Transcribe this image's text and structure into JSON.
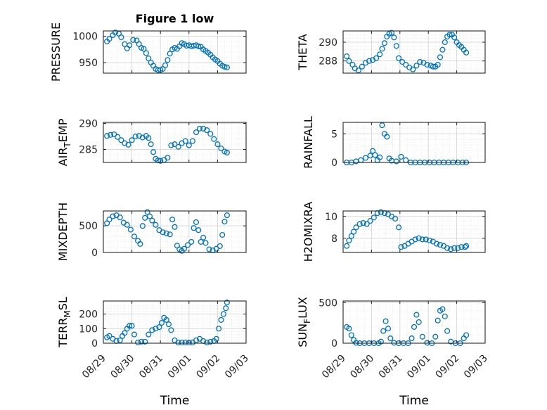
{
  "figure": {
    "title": "Figure 1 low",
    "xlabel": "Time",
    "x_ticks": [
      "08/29",
      "08/30",
      "08/31",
      "09/01",
      "09/02",
      "09/03"
    ],
    "marker_color": "#0072BD",
    "grid_color": "#d9d9d9"
  },
  "chart_data": [
    {
      "type": "scatter",
      "marker": "circle",
      "ylabel": "PRESSURE",
      "title": "Figure 1 low",
      "xlim": [
        "2017-08-29",
        "2017-09-03"
      ],
      "xlabel": "",
      "ylim": [
        930,
        1010
      ],
      "yticks": [
        950,
        1000
      ],
      "ytick_labels": [
        "950",
        "1000"
      ],
      "grid": true,
      "x": [
        "2017-08-29 03:00",
        "2017-08-29 05:00",
        "2017-08-29 08:00",
        "2017-08-29 10:00",
        "2017-08-29 13:00",
        "2017-08-29 15:00",
        "2017-08-29 18:00",
        "2017-08-29 20:00",
        "2017-08-29 22:00",
        "2017-08-30 01:00",
        "2017-08-30 04:00",
        "2017-08-30 06:00",
        "2017-08-30 08:00",
        "2017-08-30 10:00",
        "2017-08-30 12:00",
        "2017-08-30 14:00",
        "2017-08-30 16:00",
        "2017-08-30 18:00",
        "2017-08-30 20:00",
        "2017-08-30 22:00",
        "2017-08-31 00:00",
        "2017-08-31 02:00",
        "2017-08-31 04:00",
        "2017-08-31 06:00",
        "2017-08-31 08:00",
        "2017-08-31 10:00",
        "2017-08-31 12:00",
        "2017-08-31 14:00",
        "2017-08-31 16:00",
        "2017-08-31 18:00",
        "2017-08-31 20:00",
        "2017-08-31 22:00",
        "2017-09-01 00:00",
        "2017-09-01 02:00",
        "2017-09-01 04:00",
        "2017-09-01 06:00",
        "2017-09-01 08:00",
        "2017-09-01 10:00",
        "2017-09-01 12:00",
        "2017-09-01 14:00",
        "2017-09-01 16:00",
        "2017-09-01 18:00",
        "2017-09-01 20:00",
        "2017-09-01 22:00",
        "2017-09-02 00:00",
        "2017-09-02 02:00",
        "2017-09-02 04:00",
        "2017-09-02 06:00",
        "2017-09-02 08:00"
      ],
      "y": [
        990,
        995,
        1002,
        1007,
        1005,
        998,
        985,
        977,
        983,
        993,
        992,
        985,
        978,
        976,
        968,
        958,
        950,
        944,
        938,
        936,
        936,
        938,
        945,
        955,
        967,
        975,
        978,
        976,
        981,
        987,
        985,
        982,
        983,
        981,
        982,
        983,
        981,
        980,
        975,
        972,
        969,
        965,
        960,
        956,
        953,
        948,
        944,
        942,
        941
      ]
    },
    {
      "type": "scatter",
      "marker": "circle",
      "ylabel": "THETA",
      "xlim": [
        "2017-08-29",
        "2017-09-03"
      ],
      "ylim": [
        286.7,
        291.2
      ],
      "yticks": [
        288,
        290
      ],
      "ytick_labels": [
        "288",
        "290"
      ],
      "grid": true,
      "x": [
        "2017-08-29 03:00",
        "2017-08-29 05:00",
        "2017-08-29 08:00",
        "2017-08-29 10:00",
        "2017-08-29 13:00",
        "2017-08-29 16:00",
        "2017-08-29 19:00",
        "2017-08-29 22:00",
        "2017-08-30 01:00",
        "2017-08-30 04:00",
        "2017-08-30 07:00",
        "2017-08-30 09:00",
        "2017-08-30 11:00",
        "2017-08-30 13:00",
        "2017-08-30 15:00",
        "2017-08-30 17:00",
        "2017-08-30 19:00",
        "2017-08-30 21:00",
        "2017-08-30 23:00",
        "2017-08-31 02:00",
        "2017-08-31 05:00",
        "2017-08-31 08:00",
        "2017-08-31 11:00",
        "2017-08-31 14:00",
        "2017-08-31 17:00",
        "2017-08-31 20:00",
        "2017-08-31 23:00",
        "2017-09-01 02:00",
        "2017-09-01 04:00",
        "2017-09-01 06:00",
        "2017-09-01 08:00",
        "2017-09-01 10:00",
        "2017-09-01 12:00",
        "2017-09-01 14:00",
        "2017-09-01 16:00",
        "2017-09-01 18:00",
        "2017-09-01 20:00",
        "2017-09-01 22:00",
        "2017-09-02 00:00",
        "2017-09-02 02:00",
        "2017-09-02 04:00",
        "2017-09-02 06:00",
        "2017-09-02 08:00"
      ],
      "y": [
        288.5,
        288.0,
        287.6,
        287.2,
        287.0,
        287.4,
        287.8,
        288.0,
        288.1,
        288.3,
        288.7,
        289.3,
        289.9,
        290.6,
        290.9,
        291.0,
        290.5,
        289.6,
        288.3,
        287.9,
        287.6,
        287.3,
        287.1,
        287.5,
        287.9,
        287.8,
        287.6,
        287.5,
        287.4,
        287.4,
        287.6,
        288.4,
        289.2,
        290.0,
        290.6,
        290.8,
        290.8,
        290.5,
        290.0,
        289.7,
        289.5,
        289.2,
        288.9
      ]
    },
    {
      "type": "scatter",
      "marker": "circle",
      "ylabel": "AIR_TEMP",
      "xlim": [
        "2017-08-29",
        "2017-09-03"
      ],
      "ylim": [
        282.5,
        290.2
      ],
      "yticks": [
        285,
        290
      ],
      "ytick_labels": [
        "285",
        "290"
      ],
      "grid": true,
      "x": [
        "2017-08-29 03:00",
        "2017-08-29 06:00",
        "2017-08-29 09:00",
        "2017-08-29 12:00",
        "2017-08-29 15:00",
        "2017-08-29 18:00",
        "2017-08-29 21:00",
        "2017-08-30 00:00",
        "2017-08-30 03:00",
        "2017-08-30 06:00",
        "2017-08-30 09:00",
        "2017-08-30 12:00",
        "2017-08-30 14:00",
        "2017-08-30 16:00",
        "2017-08-30 18:00",
        "2017-08-30 20:00",
        "2017-08-30 22:00",
        "2017-08-31 00:00",
        "2017-08-31 03:00",
        "2017-08-31 06:00",
        "2017-08-31 09:00",
        "2017-08-31 12:00",
        "2017-08-31 15:00",
        "2017-08-31 18:00",
        "2017-08-31 21:00",
        "2017-09-01 00:00",
        "2017-09-01 03:00",
        "2017-09-01 06:00",
        "2017-09-01 09:00",
        "2017-09-01 12:00",
        "2017-09-01 15:00",
        "2017-09-01 18:00",
        "2017-09-01 21:00",
        "2017-09-02 00:00",
        "2017-09-02 03:00",
        "2017-09-02 06:00",
        "2017-09-02 08:00"
      ],
      "y": [
        287.6,
        287.8,
        287.9,
        287.4,
        286.8,
        286.2,
        285.9,
        286.8,
        287.5,
        287.6,
        287.3,
        287.6,
        287.2,
        286.0,
        284.5,
        283.2,
        282.9,
        282.8,
        283.0,
        283.4,
        285.8,
        286.0,
        285.5,
        286.2,
        286.6,
        285.8,
        286.6,
        288.3,
        289.0,
        289.0,
        288.7,
        288.0,
        287.0,
        286.0,
        285.2,
        284.6,
        284.4
      ]
    },
    {
      "type": "scatter",
      "marker": "circle",
      "ylabel": "RAINFALL",
      "xlim": [
        "2017-08-29",
        "2017-09-03"
      ],
      "ylim": [
        0,
        7
      ],
      "yticks": [
        0,
        5
      ],
      "ytick_labels": [
        "0",
        "5"
      ],
      "grid": true,
      "x": [
        "2017-08-29 03:00",
        "2017-08-29 07:00",
        "2017-08-29 11:00",
        "2017-08-29 15:00",
        "2017-08-29 19:00",
        "2017-08-29 23:00",
        "2017-08-30 01:00",
        "2017-08-30 03:00",
        "2017-08-30 05:00",
        "2017-08-30 07:00",
        "2017-08-30 09:00",
        "2017-08-30 11:00",
        "2017-08-30 13:00",
        "2017-08-30 15:00",
        "2017-08-30 17:00",
        "2017-08-30 21:00",
        "2017-08-31 01:00",
        "2017-08-31 05:00",
        "2017-08-31 09:00",
        "2017-08-31 13:00",
        "2017-08-31 17:00",
        "2017-08-31 21:00",
        "2017-09-01 01:00",
        "2017-09-01 05:00",
        "2017-09-01 09:00",
        "2017-09-01 13:00",
        "2017-09-01 17:00",
        "2017-09-01 21:00",
        "2017-09-02 01:00",
        "2017-09-02 05:00",
        "2017-09-02 08:00"
      ],
      "y": [
        0,
        0,
        0.2,
        0.4,
        0.8,
        1.2,
        2.0,
        1.3,
        0.4,
        0.9,
        6.5,
        5.0,
        4.5,
        0.7,
        0.3,
        0.2,
        1.0,
        0.4,
        0,
        0,
        0,
        0,
        0,
        0,
        0,
        0,
        0,
        0,
        0,
        0,
        0
      ]
    },
    {
      "type": "scatter",
      "marker": "circle",
      "ylabel": "MIXDEPTH",
      "xlim": [
        "2017-08-29",
        "2017-09-03"
      ],
      "ylim": [
        0,
        780
      ],
      "yticks": [
        0,
        500
      ],
      "ytick_labels": [
        "0",
        "500"
      ],
      "grid": true,
      "x": [
        "2017-08-29 03:00",
        "2017-08-29 05:00",
        "2017-08-29 08:00",
        "2017-08-29 11:00",
        "2017-08-29 14:00",
        "2017-08-29 17:00",
        "2017-08-29 20:00",
        "2017-08-29 23:00",
        "2017-08-30 02:00",
        "2017-08-30 05:00",
        "2017-08-30 07:00",
        "2017-08-30 09:00",
        "2017-08-30 11:00",
        "2017-08-30 13:00",
        "2017-08-30 15:00",
        "2017-08-30 17:00",
        "2017-08-30 20:00",
        "2017-08-30 23:00",
        "2017-08-31 02:00",
        "2017-08-31 05:00",
        "2017-08-31 08:00",
        "2017-08-31 10:00",
        "2017-08-31 12:00",
        "2017-08-31 14:00",
        "2017-08-31 16:00",
        "2017-08-31 18:00",
        "2017-08-31 20:00",
        "2017-08-31 23:00",
        "2017-09-01 02:00",
        "2017-09-01 04:00",
        "2017-09-01 06:00",
        "2017-09-01 08:00",
        "2017-09-01 10:00",
        "2017-09-01 12:00",
        "2017-09-01 14:00",
        "2017-09-01 17:00",
        "2017-09-01 20:00",
        "2017-09-01 23:00",
        "2017-09-02 02:00",
        "2017-09-02 04:00",
        "2017-09-02 06:00",
        "2017-09-02 08:00"
      ],
      "y": [
        550,
        620,
        680,
        700,
        660,
        560,
        520,
        430,
        300,
        220,
        160,
        500,
        650,
        760,
        680,
        600,
        520,
        420,
        380,
        360,
        340,
        620,
        480,
        130,
        60,
        30,
        70,
        140,
        200,
        460,
        570,
        420,
        200,
        280,
        180,
        60,
        40,
        70,
        120,
        330,
        580,
        700
      ]
    },
    {
      "type": "scatter",
      "marker": "circle",
      "ylabel": "H2OMIXRA",
      "xlim": [
        "2017-08-29",
        "2017-09-03"
      ],
      "ylim": [
        6.7,
        10.5
      ],
      "yticks": [
        8,
        10
      ],
      "ytick_labels": [
        "8",
        "10"
      ],
      "grid": true,
      "x": [
        "2017-08-29 03:00",
        "2017-08-29 05:00",
        "2017-08-29 07:00",
        "2017-08-29 09:00",
        "2017-08-29 11:00",
        "2017-08-29 14:00",
        "2017-08-29 17:00",
        "2017-08-29 20:00",
        "2017-08-29 23:00",
        "2017-08-30 02:00",
        "2017-08-30 05:00",
        "2017-08-30 08:00",
        "2017-08-30 11:00",
        "2017-08-30 14:00",
        "2017-08-30 17:00",
        "2017-08-30 20:00",
        "2017-08-30 23:00",
        "2017-08-31 01:00",
        "2017-08-31 04:00",
        "2017-08-31 07:00",
        "2017-08-31 10:00",
        "2017-08-31 13:00",
        "2017-08-31 16:00",
        "2017-08-31 19:00",
        "2017-08-31 22:00",
        "2017-09-01 01:00",
        "2017-09-01 04:00",
        "2017-09-01 07:00",
        "2017-09-01 10:00",
        "2017-09-01 13:00",
        "2017-09-01 16:00",
        "2017-09-01 19:00",
        "2017-09-01 22:00",
        "2017-09-02 01:00",
        "2017-09-02 04:00",
        "2017-09-02 07:00",
        "2017-09-02 08:00"
      ],
      "y": [
        7.3,
        7.8,
        8.2,
        8.6,
        9.0,
        9.3,
        9.4,
        9.3,
        9.6,
        9.9,
        10.3,
        10.4,
        10.3,
        10.2,
        10.0,
        9.8,
        9.0,
        7.2,
        7.3,
        7.5,
        7.7,
        7.9,
        8.0,
        7.9,
        7.9,
        7.8,
        7.7,
        7.5,
        7.4,
        7.3,
        7.1,
        7.0,
        7.1,
        7.1,
        7.2,
        7.2,
        7.3
      ]
    },
    {
      "type": "scatter",
      "marker": "circle",
      "ylabel": "TERR_MSL",
      "xlim": [
        "2017-08-29",
        "2017-09-03"
      ],
      "ylim": [
        0,
        290
      ],
      "yticks": [
        0,
        100,
        200
      ],
      "ytick_labels": [
        "0",
        "100",
        "200"
      ],
      "grid": true,
      "x": [
        "2017-08-29 03:00",
        "2017-08-29 05:00",
        "2017-08-29 08:00",
        "2017-08-29 11:00",
        "2017-08-29 14:00",
        "2017-08-29 16:00",
        "2017-08-29 18:00",
        "2017-08-29 20:00",
        "2017-08-29 22:00",
        "2017-08-30 00:00",
        "2017-08-30 02:00",
        "2017-08-30 05:00",
        "2017-08-30 08:00",
        "2017-08-30 11:00",
        "2017-08-30 14:00",
        "2017-08-30 17:00",
        "2017-08-30 20:00",
        "2017-08-30 23:00",
        "2017-08-31 01:00",
        "2017-08-31 03:00",
        "2017-08-31 05:00",
        "2017-08-31 07:00",
        "2017-08-31 09:00",
        "2017-08-31 12:00",
        "2017-08-31 15:00",
        "2017-08-31 18:00",
        "2017-08-31 21:00",
        "2017-09-01 00:00",
        "2017-09-01 03:00",
        "2017-09-01 06:00",
        "2017-09-01 09:00",
        "2017-09-01 12:00",
        "2017-09-01 15:00",
        "2017-09-01 18:00",
        "2017-09-01 21:00",
        "2017-09-01 23:00",
        "2017-09-02 01:00",
        "2017-09-02 03:00",
        "2017-09-02 05:00",
        "2017-09-02 07:00",
        "2017-09-02 08:00"
      ],
      "y": [
        40,
        50,
        30,
        15,
        20,
        50,
        70,
        100,
        120,
        120,
        60,
        5,
        10,
        10,
        60,
        90,
        100,
        110,
        140,
        175,
        160,
        130,
        90,
        20,
        5,
        5,
        5,
        5,
        5,
        20,
        30,
        15,
        5,
        10,
        15,
        30,
        100,
        160,
        200,
        240,
        280
      ]
    },
    {
      "type": "scatter",
      "marker": "circle",
      "ylabel": "SUN_FLUX",
      "xlim": [
        "2017-08-29",
        "2017-09-03"
      ],
      "ylim": [
        0,
        520
      ],
      "yticks": [
        0,
        500
      ],
      "ytick_labels": [
        "0",
        "500"
      ],
      "grid": true,
      "x": [
        "2017-08-29 03:00",
        "2017-08-29 05:00",
        "2017-08-29 07:00",
        "2017-08-29 09:00",
        "2017-08-29 11:00",
        "2017-08-29 14:00",
        "2017-08-29 18:00",
        "2017-08-29 22:00",
        "2017-08-30 02:00",
        "2017-08-30 06:00",
        "2017-08-30 08:00",
        "2017-08-30 10:00",
        "2017-08-30 12:00",
        "2017-08-30 14:00",
        "2017-08-30 16:00",
        "2017-08-30 19:00",
        "2017-08-30 23:00",
        "2017-08-31 03:00",
        "2017-08-31 07:00",
        "2017-08-31 10:00",
        "2017-08-31 12:00",
        "2017-08-31 14:00",
        "2017-08-31 16:00",
        "2017-08-31 19:00",
        "2017-08-31 23:00",
        "2017-09-01 03:00",
        "2017-09-01 06:00",
        "2017-09-01 08:00",
        "2017-09-01 10:00",
        "2017-09-01 12:00",
        "2017-09-01 14:00",
        "2017-09-01 16:00",
        "2017-09-01 19:00",
        "2017-09-01 23:00",
        "2017-09-02 03:00",
        "2017-09-02 06:00",
        "2017-09-02 08:00"
      ],
      "y": [
        200,
        180,
        100,
        40,
        5,
        0,
        0,
        0,
        0,
        0,
        20,
        150,
        270,
        180,
        60,
        5,
        0,
        0,
        0,
        60,
        200,
        350,
        260,
        80,
        5,
        0,
        80,
        280,
        400,
        420,
        330,
        150,
        20,
        0,
        0,
        60,
        100
      ]
    }
  ]
}
